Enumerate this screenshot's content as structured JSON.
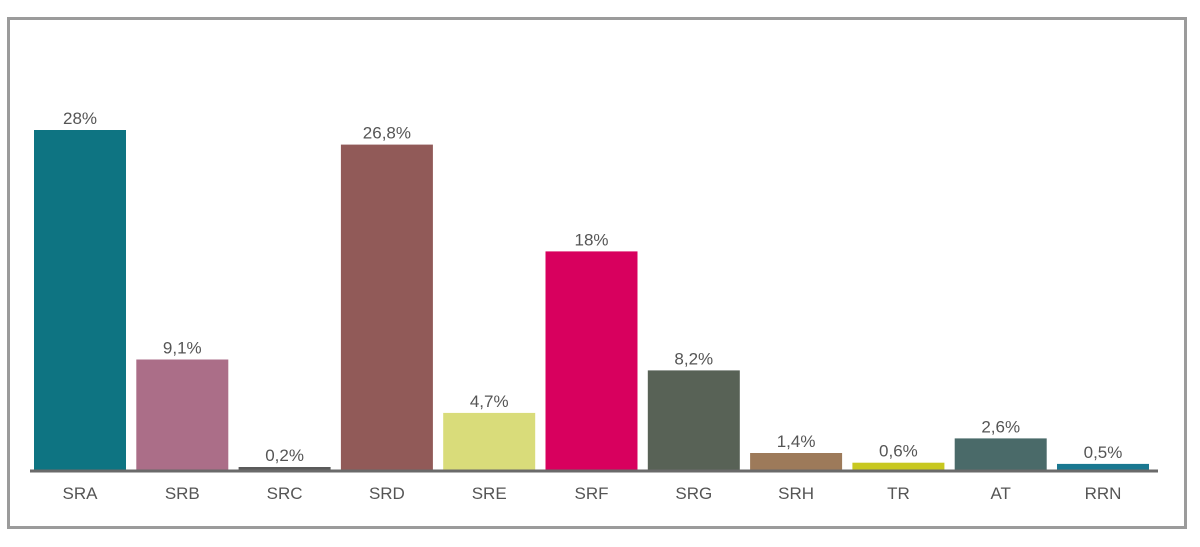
{
  "chart_data": {
    "type": "bar",
    "categories": [
      "SRA",
      "SRB",
      "SRC",
      "SRD",
      "SRE",
      "SRF",
      "SRG",
      "SRH",
      "TR",
      "AT",
      "RRN"
    ],
    "values": [
      28,
      9.1,
      0.2,
      26.8,
      4.7,
      18,
      8.2,
      1.4,
      0.6,
      2.6,
      0.5
    ],
    "data_labels": [
      "28%",
      "9,1%",
      "0,2%",
      "26,8%",
      "4,7%",
      "18%",
      "8,2%",
      "1,4%",
      "0,6%",
      "2,6%",
      "0,5%"
    ],
    "colors": [
      "#0e7482",
      "#ab6e88",
      "#5a5a5a",
      "#915a58",
      "#d9dc7a",
      "#d8005e",
      "#586256",
      "#9d7a5a",
      "#c8c820",
      "#4a6a69",
      "#1a7891"
    ],
    "title": "",
    "xlabel": "",
    "ylabel": "",
    "ylim": [
      0,
      28
    ],
    "grid": false,
    "legend": "none",
    "axis_color": "#6a6a6a"
  }
}
